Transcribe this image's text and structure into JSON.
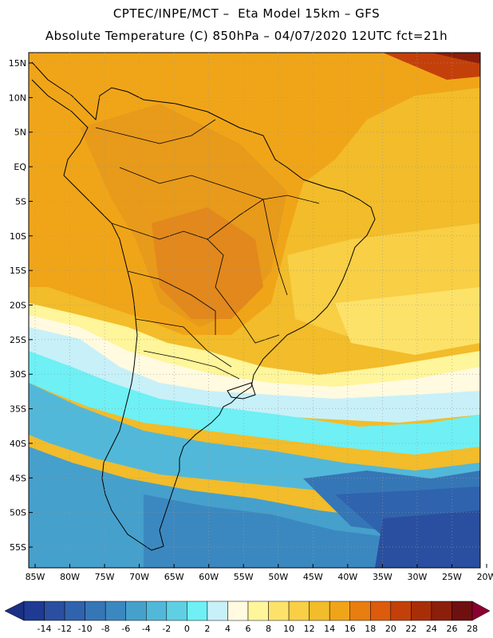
{
  "header": {
    "line1": "CPTEC/INPE/MCT –  Eta Model 15km – GFS",
    "line2": "Absolute Temperature (C) 850hPa – 04/07/2020 12UTC fct=21h"
  },
  "axes": {
    "lat_labels": [
      "15N",
      "10N",
      "5N",
      "EQ",
      "5S",
      "10S",
      "15S",
      "20S",
      "25S",
      "30S",
      "35S",
      "40S",
      "45S",
      "50S",
      "55S"
    ],
    "lon_labels": [
      "85W",
      "80W",
      "75W",
      "70W",
      "65W",
      "60W",
      "55W",
      "50W",
      "45W",
      "40W",
      "35W",
      "30W",
      "25W",
      "20W"
    ]
  },
  "colorbar": {
    "labels": [
      "-14",
      "-12",
      "-10",
      "-8",
      "-6",
      "-4",
      "-2",
      "0",
      "2",
      "4",
      "6",
      "8",
      "10",
      "12",
      "14",
      "16",
      "18",
      "20",
      "22",
      "24",
      "26",
      "28"
    ],
    "colors": [
      "#1f3a93",
      "#2a4fa0",
      "#2f63ad",
      "#3576b7",
      "#3b88c0",
      "#45a0cc",
      "#52b8d9",
      "#5fd0e4",
      "#6ef0f5",
      "#c8f0f8",
      "#fffae0",
      "#fff59a",
      "#fde26a",
      "#f8cf45",
      "#f2bc2a",
      "#f0a518",
      "#e87d10",
      "#dc5b0c",
      "#c4400a",
      "#a82e08",
      "#8c1f0a",
      "#6e1010"
    ],
    "end_left_color": "#1b2f85",
    "end_right_color": "#8a0030"
  }
}
